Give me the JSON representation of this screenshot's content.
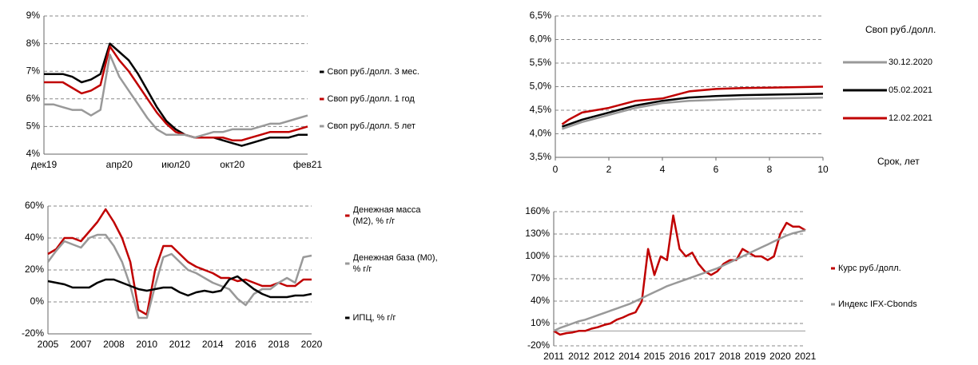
{
  "chart_data": [
    {
      "type": "line",
      "categories": [
        "дек19",
        null,
        null,
        null,
        null,
        null,
        null,
        null,
        "апр20",
        null,
        null,
        null,
        null,
        null,
        "июл20",
        null,
        null,
        null,
        null,
        null,
        "окт20",
        null,
        null,
        null,
        null,
        null,
        null,
        null,
        "фев21"
      ],
      "series": [
        {
          "name": "Своп руб./долл. 3 мес.",
          "color": "#000000",
          "values": [
            6.9,
            6.9,
            6.9,
            6.8,
            6.6,
            6.7,
            6.9,
            8.0,
            7.7,
            7.4,
            6.9,
            6.3,
            5.7,
            5.2,
            4.9,
            4.7,
            4.6,
            4.6,
            4.6,
            4.5,
            4.4,
            4.3,
            4.4,
            4.5,
            4.6,
            4.6,
            4.6,
            4.7,
            4.7
          ]
        },
        {
          "name": "Своп руб./долл. 1 год",
          "color": "#c00000",
          "values": [
            6.6,
            6.6,
            6.6,
            6.4,
            6.2,
            6.3,
            6.5,
            7.9,
            7.4,
            7.0,
            6.5,
            6.0,
            5.5,
            5.1,
            4.8,
            4.7,
            4.6,
            4.6,
            4.6,
            4.6,
            4.5,
            4.5,
            4.6,
            4.7,
            4.8,
            4.8,
            4.8,
            4.9,
            5.0
          ]
        },
        {
          "name": "Своп руб./долл. 5 лет",
          "color": "#999999",
          "values": [
            5.8,
            5.8,
            5.7,
            5.6,
            5.6,
            5.4,
            5.6,
            7.6,
            6.8,
            6.3,
            5.8,
            5.3,
            4.9,
            4.7,
            4.7,
            4.7,
            4.6,
            4.7,
            4.8,
            4.8,
            4.9,
            4.9,
            4.9,
            5.0,
            5.1,
            5.1,
            5.2,
            5.3,
            5.4
          ]
        }
      ],
      "ylim": [
        4,
        9
      ],
      "yticks": [
        {
          "value": 4,
          "label": "4%"
        },
        {
          "value": 5,
          "label": "5%"
        },
        {
          "value": 6,
          "label": "6%"
        },
        {
          "value": 7,
          "label": "7%"
        },
        {
          "value": 8,
          "label": "8%"
        },
        {
          "value": 9,
          "label": "9%"
        }
      ],
      "grid": true
    },
    {
      "type": "line",
      "legend_title": "Своп руб./долл.",
      "x_label": "Срок, лет",
      "x": [
        0.25,
        0.5,
        1,
        2,
        3,
        4,
        5,
        6,
        7,
        8,
        10
      ],
      "series": [
        {
          "name": "30.12.2020",
          "color": "#999999",
          "values": [
            4.1,
            4.15,
            4.25,
            4.4,
            4.55,
            4.65,
            4.7,
            4.72,
            4.74,
            4.75,
            4.77
          ]
        },
        {
          "name": "05.02.2021",
          "color": "#000000",
          "values": [
            4.15,
            4.2,
            4.3,
            4.45,
            4.6,
            4.7,
            4.77,
            4.8,
            4.82,
            4.83,
            4.85
          ]
        },
        {
          "name": "12.02.2021",
          "color": "#c00000",
          "values": [
            4.2,
            4.3,
            4.45,
            4.55,
            4.7,
            4.75,
            4.9,
            4.95,
            4.97,
            4.98,
            5.0
          ]
        }
      ],
      "xlim": [
        0,
        10
      ],
      "xticks": [
        0,
        2,
        4,
        6,
        8,
        10
      ],
      "ylim": [
        3.5,
        6.5
      ],
      "yticks": [
        {
          "value": 3.5,
          "label": "3,5%"
        },
        {
          "value": 4,
          "label": "4,0%"
        },
        {
          "value": 4.5,
          "label": "4,5%"
        },
        {
          "value": 5,
          "label": "5,0%"
        },
        {
          "value": 5.5,
          "label": "5,5%"
        },
        {
          "value": 6,
          "label": "6,0%"
        },
        {
          "value": 6.5,
          "label": "6,5%"
        }
      ],
      "grid": true
    },
    {
      "type": "line",
      "categories": [
        "2005",
        null,
        null,
        null,
        "2007",
        null,
        null,
        null,
        "2008",
        null,
        null,
        null,
        "2010",
        null,
        null,
        null,
        "2012",
        null,
        null,
        null,
        "2014",
        null,
        null,
        null,
        "2016",
        null,
        null,
        null,
        "2018",
        null,
        null,
        null,
        "2020"
      ],
      "series": [
        {
          "name": "Денежная масса (М2), % г/г",
          "color": "#c00000",
          "values": [
            30,
            33,
            40,
            40,
            38,
            44,
            50,
            58,
            50,
            40,
            25,
            -5,
            -8,
            20,
            35,
            35,
            30,
            25,
            22,
            20,
            18,
            15,
            15,
            13,
            14,
            12,
            10,
            10,
            12,
            10,
            10,
            14,
            14
          ]
        },
        {
          "name": "Денежная база (М0), % г/г",
          "color": "#999999",
          "values": [
            25,
            32,
            38,
            36,
            34,
            40,
            42,
            42,
            35,
            25,
            10,
            -10,
            -10,
            10,
            28,
            30,
            25,
            20,
            18,
            15,
            12,
            10,
            8,
            2,
            -2,
            5,
            8,
            8,
            12,
            15,
            12,
            28,
            29
          ]
        },
        {
          "name": "ИПЦ, % г/г",
          "color": "#000000",
          "values": [
            13,
            12,
            11,
            9,
            9,
            9,
            12,
            14,
            14,
            12,
            10,
            8,
            7,
            8,
            9,
            9,
            6,
            4,
            6,
            7,
            6,
            7,
            14,
            16,
            12,
            8,
            5,
            3,
            3,
            3,
            4,
            4,
            5
          ]
        }
      ],
      "ylim": [
        -20,
        60
      ],
      "yticks": [
        {
          "value": -20,
          "label": "-20%"
        },
        {
          "value": 0,
          "label": "0%"
        },
        {
          "value": 20,
          "label": "20%"
        },
        {
          "value": 40,
          "label": "40%"
        },
        {
          "value": 60,
          "label": "60%"
        }
      ],
      "grid": true
    },
    {
      "type": "line",
      "categories": [
        "2011",
        null,
        null,
        null,
        "2012",
        null,
        null,
        null,
        "2012",
        null,
        null,
        null,
        "2014",
        null,
        null,
        null,
        "2015",
        null,
        null,
        null,
        "2016",
        null,
        null,
        null,
        "2017",
        null,
        null,
        null,
        "2018",
        null,
        null,
        null,
        "2019",
        null,
        null,
        null,
        "2020",
        null,
        null,
        null,
        "2021"
      ],
      "series": [
        {
          "name": "Курс руб./долл.",
          "color": "#c00000",
          "values": [
            0,
            -5,
            -3,
            -2,
            0,
            0,
            3,
            5,
            8,
            10,
            15,
            18,
            22,
            25,
            40,
            110,
            75,
            100,
            95,
            155,
            110,
            100,
            105,
            90,
            80,
            75,
            80,
            90,
            95,
            95,
            110,
            105,
            100,
            100,
            95,
            100,
            130,
            145,
            140,
            140,
            135
          ]
        },
        {
          "name": "Индекс IFX-Cbonds",
          "color": "#999999",
          "values": [
            0,
            4,
            7,
            10,
            13,
            15,
            18,
            21,
            24,
            27,
            30,
            33,
            36,
            40,
            44,
            48,
            52,
            56,
            60,
            63,
            66,
            69,
            72,
            75,
            78,
            81,
            84,
            88,
            92,
            96,
            100,
            104,
            108,
            112,
            116,
            120,
            124,
            128,
            131,
            133,
            135
          ]
        }
      ],
      "ylim": [
        -20,
        160
      ],
      "yticks": [
        {
          "value": -20,
          "label": "-20%"
        },
        {
          "value": 10,
          "label": "10%"
        },
        {
          "value": 40,
          "label": "40%"
        },
        {
          "value": 70,
          "label": "70%"
        },
        {
          "value": 100,
          "label": "100%"
        },
        {
          "value": 130,
          "label": "130%"
        },
        {
          "value": 160,
          "label": "160%"
        }
      ],
      "grid": true
    }
  ]
}
